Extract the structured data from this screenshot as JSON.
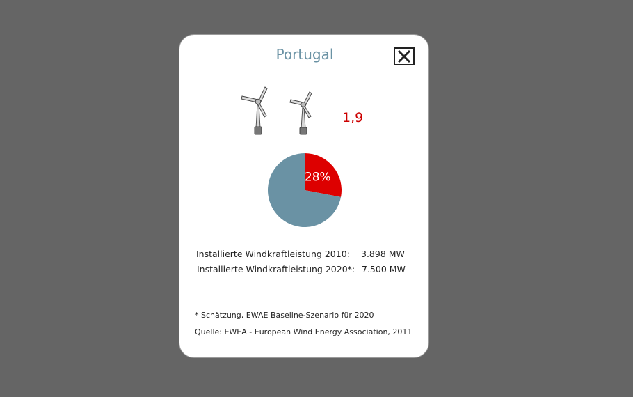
{
  "dialog": {
    "title": "Portugal",
    "close_icon": "close-x-icon",
    "ratio": "1,9",
    "turbine_icon": "wind-turbine-icon",
    "turbine_count": 2,
    "pie_label": "28%",
    "stats": [
      {
        "label": "Installierte Windkraftleistung 2010:",
        "value": "3.898 MW"
      },
      {
        "label": "Installierte Windkraftleistung 2020*:",
        "value": "7.500 MW"
      }
    ],
    "footnote": "* Schätzung, EWAE Baseline-Szenario für 2020",
    "source": "Quelle: EWEA - European Wind Energy Association, 2011",
    "colors": {
      "title": "#6a92a4",
      "ratio": "#cc0000",
      "pie_highlight": "#dd0000",
      "pie_rest": "#6a92a4",
      "background_overlay": "#656565"
    }
  },
  "chart_data": {
    "type": "pie",
    "values": [
      28,
      72
    ],
    "labels": [
      "28%",
      ""
    ],
    "colors": [
      "#dd0000",
      "#6a92a4"
    ]
  }
}
